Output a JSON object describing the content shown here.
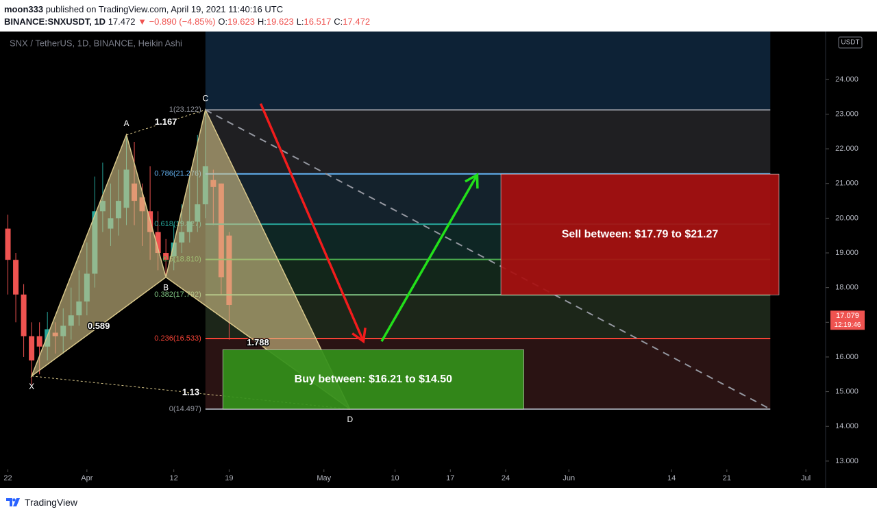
{
  "header": {
    "author": "moon333",
    "published": "published on TradingView.com, April 19, 2021 11:40:16 UTC",
    "symbol": "BINANCE:SNXUSDT, 1D",
    "price": "17.472",
    "change": "▼ −0.890 (−4.85%)",
    "ohlc": [
      {
        "label": "O:",
        "value": "19.623"
      },
      {
        "label": "H:",
        "value": "19.623"
      },
      {
        "label": "L:",
        "value": "16.517"
      },
      {
        "label": "C:",
        "value": "17.472"
      }
    ]
  },
  "chart_data": {
    "type": "candlestick",
    "title": "SNX / TetherUS, 1D, BINANCE, Heikin Ashi",
    "currency": "USDT",
    "x": [
      0,
      1,
      2,
      3,
      4,
      5,
      6,
      7,
      8,
      9,
      10,
      11,
      12,
      13,
      14,
      15,
      16,
      17,
      18,
      19,
      20,
      21,
      22,
      23,
      24,
      25,
      26,
      27,
      28
    ],
    "open": [
      19.7,
      18.8,
      17.8,
      16.6,
      16.6,
      16.3,
      16.7,
      16.6,
      16.9,
      17.2,
      17.6,
      18.4,
      20.2,
      19.7,
      20.0,
      20.3,
      21.0,
      20.6,
      20.2,
      19.6,
      19.0,
      18.9,
      19.3,
      19.6,
      19.9,
      20.4,
      21.1,
      21.0,
      19.5
    ],
    "high": [
      20.1,
      19.0,
      18.1,
      17.0,
      17.0,
      17.3,
      17.0,
      17.4,
      18.0,
      18.5,
      19.3,
      21.2,
      21.6,
      21.0,
      21.4,
      22.4,
      22.2,
      21.0,
      21.5,
      20.2,
      19.4,
      19.8,
      20.4,
      21.2,
      22.4,
      23.1,
      21.4,
      21.0,
      19.6
    ],
    "low": [
      17.8,
      17.0,
      16.0,
      15.2,
      15.5,
      15.9,
      16.1,
      16.1,
      16.5,
      16.9,
      17.2,
      18.0,
      19.6,
      19.2,
      19.5,
      19.8,
      19.8,
      19.2,
      18.8,
      18.5,
      18.3,
      18.5,
      19.0,
      19.3,
      19.6,
      20.0,
      19.8,
      17.8,
      16.5
    ],
    "close": [
      18.8,
      17.8,
      16.6,
      15.9,
      16.3,
      16.8,
      16.6,
      16.9,
      17.2,
      17.6,
      18.4,
      20.2,
      20.5,
      20.0,
      20.5,
      21.4,
      20.5,
      20.2,
      19.6,
      19.0,
      18.8,
      19.3,
      19.6,
      19.9,
      20.4,
      21.5,
      20.9,
      18.3,
      17.5
    ],
    "up_color": "#26a69a",
    "down_color": "#ef5350",
    "xlim": [
      -1,
      103.5
    ],
    "ylim": [
      12.76,
      25.38
    ],
    "xticks": [
      {
        "value": 0,
        "label": "22"
      },
      {
        "value": 10,
        "label": "Apr"
      },
      {
        "value": 21,
        "label": "12"
      },
      {
        "value": 28,
        "label": "19"
      },
      {
        "value": 40,
        "label": "May"
      },
      {
        "value": 49,
        "label": "10"
      },
      {
        "value": 56,
        "label": "17"
      },
      {
        "value": 63,
        "label": "24"
      },
      {
        "value": 71,
        "label": "Jun"
      },
      {
        "value": 84,
        "label": "14"
      },
      {
        "value": 91,
        "label": "21"
      },
      {
        "value": 101,
        "label": "Jul"
      }
    ],
    "yticks": [
      {
        "value": 13,
        "label": "13.000"
      },
      {
        "value": 14,
        "label": "14.000"
      },
      {
        "value": 15,
        "label": "15.000"
      },
      {
        "value": 16,
        "label": "16.000"
      },
      {
        "value": 17,
        "label": "17.000"
      },
      {
        "value": 18,
        "label": "18.000"
      },
      {
        "value": 19,
        "label": "19.000"
      },
      {
        "value": 20,
        "label": "20.000"
      },
      {
        "value": 21,
        "label": "21.000"
      },
      {
        "value": 22,
        "label": "22.000"
      },
      {
        "value": 23,
        "label": "23.000"
      },
      {
        "value": 24,
        "label": "24.000"
      }
    ],
    "last_price": {
      "value": 17.079,
      "label": "17.079",
      "timer": "12:19:46",
      "color": "#ef5350"
    },
    "fib": {
      "x": [
        25,
        96.5
      ],
      "top_fill": "#0d2236",
      "levels": [
        {
          "value": 23.122,
          "label": "1(23.122)",
          "color": "#9598a1",
          "band_color": "#1f1f22"
        },
        {
          "value": 21.276,
          "label": "0.786(21.276)",
          "color": "#64b5f6",
          "band_color": "#14222c"
        },
        {
          "value": 19.827,
          "label": "0.618(19.827)",
          "color": "#26a69a",
          "band_color": "#0e2624"
        },
        {
          "value": 18.81,
          "label": "0.5(18.810)",
          "color": "#4caf50",
          "band_color": "#12261a"
        },
        {
          "value": 17.792,
          "label": "0.382(17.792)",
          "color": "#81c784",
          "band_color": "#1c2619"
        },
        {
          "value": 16.533,
          "label": "0.236(16.533)",
          "color": "#f44336",
          "band_color": "#2a1313"
        },
        {
          "value": 14.497,
          "label": "0(14.497)",
          "color": "#9598a1"
        }
      ]
    },
    "pattern": {
      "color": "#d8c78a",
      "points": [
        {
          "label": "X",
          "x": 3,
          "y": 15.45
        },
        {
          "label": "A",
          "x": 15,
          "y": 22.4
        },
        {
          "label": "B",
          "x": 20,
          "y": 18.3
        },
        {
          "label": "C",
          "x": 25,
          "y": 23.122
        },
        {
          "label": "D",
          "x": 43.3,
          "y": 14.497
        }
      ],
      "ratios": [
        "0.589",
        "1.167",
        "1.788",
        "1.13"
      ]
    },
    "trend_line": {
      "x": [
        25,
        96.5
      ],
      "y": [
        23.122,
        14.497
      ],
      "color": "#9598a1"
    },
    "arrows": [
      {
        "color": "#f21c1c",
        "x": [
          32,
          45
        ],
        "y": [
          23.3,
          16.45
        ]
      },
      {
        "color": "#22e01a",
        "x": [
          47.3,
          59.4
        ],
        "y": [
          16.45,
          21.25
        ]
      }
    ],
    "boxes": [
      {
        "label": "Sell between: $17.79 to $21.27",
        "color": "#a80f0f",
        "x": [
          62.4,
          97.6
        ],
        "y": [
          21.27,
          17.79
        ]
      },
      {
        "label": "Buy between: $16.21 to $14.50",
        "color": "#33901a",
        "x": [
          27.2,
          65.3
        ],
        "y": [
          16.21,
          14.5
        ]
      }
    ]
  },
  "footer": {
    "brand": "TradingView"
  }
}
